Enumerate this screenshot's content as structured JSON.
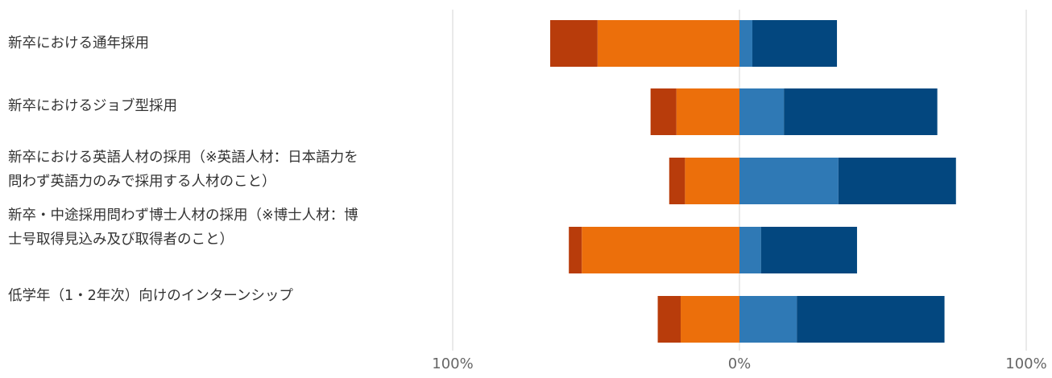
{
  "chart_data": {
    "type": "bar",
    "orientation": "horizontal",
    "stacked": "diverging",
    "categories": [
      "新卒における通年採用",
      "新卒におけるジョブ型採用",
      "新卒における英語人材の採用（※英語人材：日本語力を\n問わず英語力のみで採用する人材のこと）",
      "新卒・中途採用問わず博士人材の採用（※博士人材：博\n士号取得見込み及び取得者のこと）",
      "低学年（1・2年次）向けのインターンシップ"
    ],
    "series": [
      {
        "color": "#b83c0b",
        "side": "negative",
        "values": [
          16.5,
          9,
          5.5,
          4.5,
          8
        ]
      },
      {
        "color": "#ec6f0b",
        "side": "negative",
        "values": [
          49.5,
          22,
          19,
          55,
          20.5
        ]
      },
      {
        "color": "#2f79b5",
        "side": "positive",
        "values": [
          4.5,
          15.5,
          34.5,
          7.5,
          20
        ]
      },
      {
        "color": "#03477f",
        "side": "positive",
        "values": [
          29.5,
          53.5,
          41,
          33.5,
          51.5
        ]
      }
    ],
    "xlim": [
      -100,
      100
    ],
    "x_tick_values": [
      -100,
      0,
      100
    ],
    "x_tick_labels": [
      "100%",
      "0%",
      "100%"
    ],
    "grid": true,
    "legend": "none"
  }
}
